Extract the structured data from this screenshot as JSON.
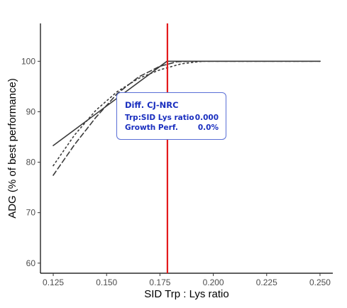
{
  "chart_data": {
    "type": "line",
    "title": "",
    "xlabel": "SID Trp : Lys ratio",
    "ylabel": "ADG (% of best performance)",
    "xlim": [
      0.119,
      0.256
    ],
    "ylim": [
      58,
      107.5
    ],
    "x_ticks": [
      "0.125",
      "0.150",
      "0.175",
      "0.200",
      "0.225",
      "0.250"
    ],
    "y_ticks": [
      "60",
      "70",
      "80",
      "90",
      "100"
    ],
    "grid": false,
    "series": [
      {
        "style": "solid",
        "points": [
          [
            0.125,
            83.3
          ],
          [
            0.1783,
            100
          ],
          [
            0.25,
            100
          ]
        ]
      },
      {
        "style": "dashed",
        "points": [
          [
            0.125,
            77.4
          ],
          [
            0.135,
            83.5
          ],
          [
            0.145,
            88.9
          ],
          [
            0.155,
            93.6
          ],
          [
            0.165,
            96.9
          ],
          [
            0.175,
            99.0
          ],
          [
            0.183,
            99.9
          ],
          [
            0.19,
            100
          ],
          [
            0.25,
            100
          ]
        ]
      },
      {
        "style": "dotted",
        "points": [
          [
            0.125,
            79.3
          ],
          [
            0.135,
            85.4
          ],
          [
            0.145,
            90.3
          ],
          [
            0.155,
            94.0
          ],
          [
            0.165,
            96.6
          ],
          [
            0.175,
            98.3
          ],
          [
            0.185,
            99.5
          ],
          [
            0.195,
            100
          ],
          [
            0.25,
            100
          ]
        ]
      }
    ],
    "vline": {
      "x": 0.1785,
      "color": "#e41a1c"
    },
    "tooltip": {
      "title": "Diff. CJ-NRC",
      "rows": [
        {
          "label": "Trp:SID Lys ratio",
          "value": "0.000"
        },
        {
          "label": "Growth Perf.",
          "value": "0.0%"
        }
      ]
    }
  }
}
